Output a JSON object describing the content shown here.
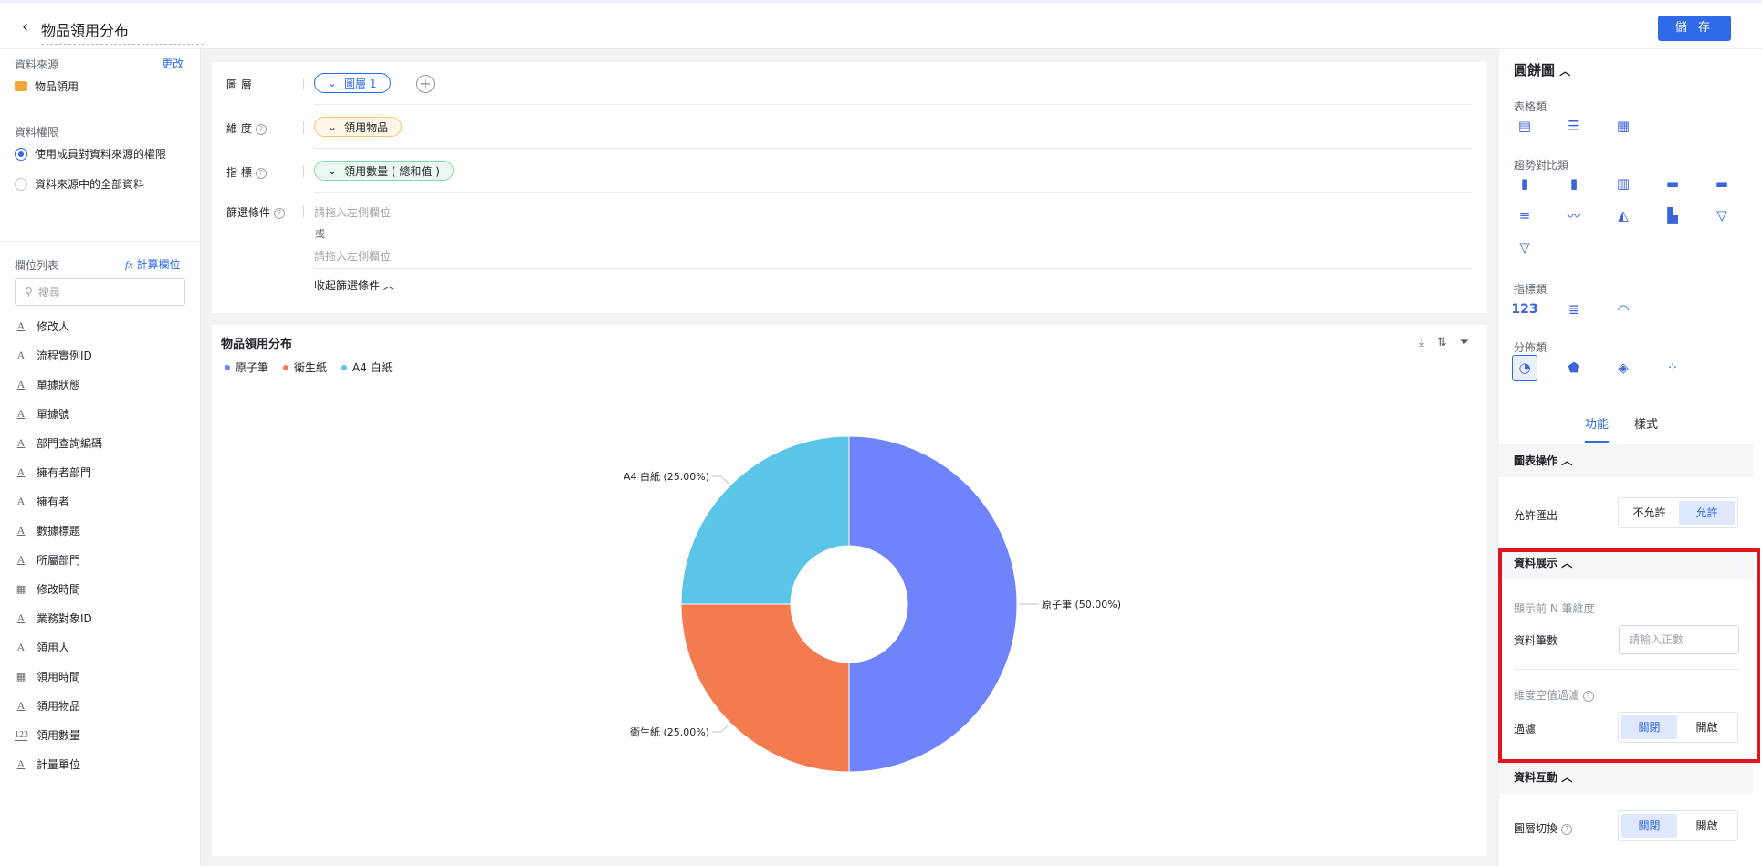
{
  "header": {
    "title": "物品領用分布",
    "save_label": "儲 存"
  },
  "left": {
    "data_source_label": "資料來源",
    "change_link": "更改",
    "data_source_name": "物品領用",
    "permission_label": "資料權限",
    "permission_options": [
      "使用成員對資料來源的權限",
      "資料來源中的全部資料"
    ],
    "fields_label": "欄位列表",
    "calc_field_link": "計算欄位",
    "search_placeholder": "搜尋",
    "fields": [
      {
        "name": "修改人",
        "type": "text"
      },
      {
        "name": "流程實例ID",
        "type": "text"
      },
      {
        "name": "單據狀態",
        "type": "text"
      },
      {
        "name": "單據號",
        "type": "text"
      },
      {
        "name": "部門查詢編碼",
        "type": "text"
      },
      {
        "name": "擁有者部門",
        "type": "text"
      },
      {
        "name": "擁有者",
        "type": "text"
      },
      {
        "name": "數據標題",
        "type": "text"
      },
      {
        "name": "所屬部門",
        "type": "text"
      },
      {
        "name": "修改時間",
        "type": "date"
      },
      {
        "name": "業務對象ID",
        "type": "text"
      },
      {
        "name": "領用人",
        "type": "text"
      },
      {
        "name": "領用時間",
        "type": "date"
      },
      {
        "name": "領用物品",
        "type": "text"
      },
      {
        "name": "領用數量",
        "type": "number"
      },
      {
        "name": "計量單位",
        "type": "text"
      }
    ]
  },
  "config": {
    "layer_label": "圖    層",
    "layer_value": "圖層 1",
    "dimension_label": "維    度",
    "dimension_value": "領用物品",
    "measure_label": "指    標",
    "measure_value": "領用數量 ( 總和值 )",
    "filter_label": "篩選條件",
    "filter_placeholder_1": "請拖入左側欄位",
    "or_label": "或",
    "filter_placeholder_2": "請拖入左側欄位",
    "collapse_label": "收起篩選條件"
  },
  "chart_data": {
    "type": "pie",
    "title": "物品領用分布",
    "categories": [
      "原子筆",
      "衛生紙",
      "A4 白紙"
    ],
    "values": [
      50,
      25,
      25
    ],
    "colors": [
      "#6f84fc",
      "#f47a50",
      "#5ac5e6"
    ],
    "labels": [
      "原子筆 (50.00%)",
      "衛生紙 (25.00%)",
      "A4 白紙 (25.00%)"
    ],
    "donut": true,
    "legend": "top-left"
  },
  "right": {
    "chart_type_title": "圓餅圖",
    "categories": {
      "table": "表格類",
      "trend": "趨勢對比類",
      "indicator": "指標類",
      "distribution": "分佈類"
    },
    "indicator_number": "123",
    "tabs": [
      "功能",
      "樣式"
    ],
    "chart_ops": {
      "title": "圖表操作",
      "allow_export_label": "允許匯出",
      "options": [
        "不允許",
        "允許"
      ],
      "selected": "允許"
    },
    "data_display": {
      "title": "資料展示",
      "top_n_label": "顯示前 N 筆維度",
      "count_label": "資料筆數",
      "count_placeholder": "請輸入正數",
      "null_filter_label": "維度空值過濾",
      "filter_label": "過濾",
      "options": [
        "關閉",
        "開啟"
      ],
      "selected": "關閉"
    },
    "interaction": {
      "title": "資料互動",
      "layer_switch_label": "圖層切換",
      "options": [
        "關閉",
        "開啟"
      ],
      "selected": "關閉"
    }
  }
}
